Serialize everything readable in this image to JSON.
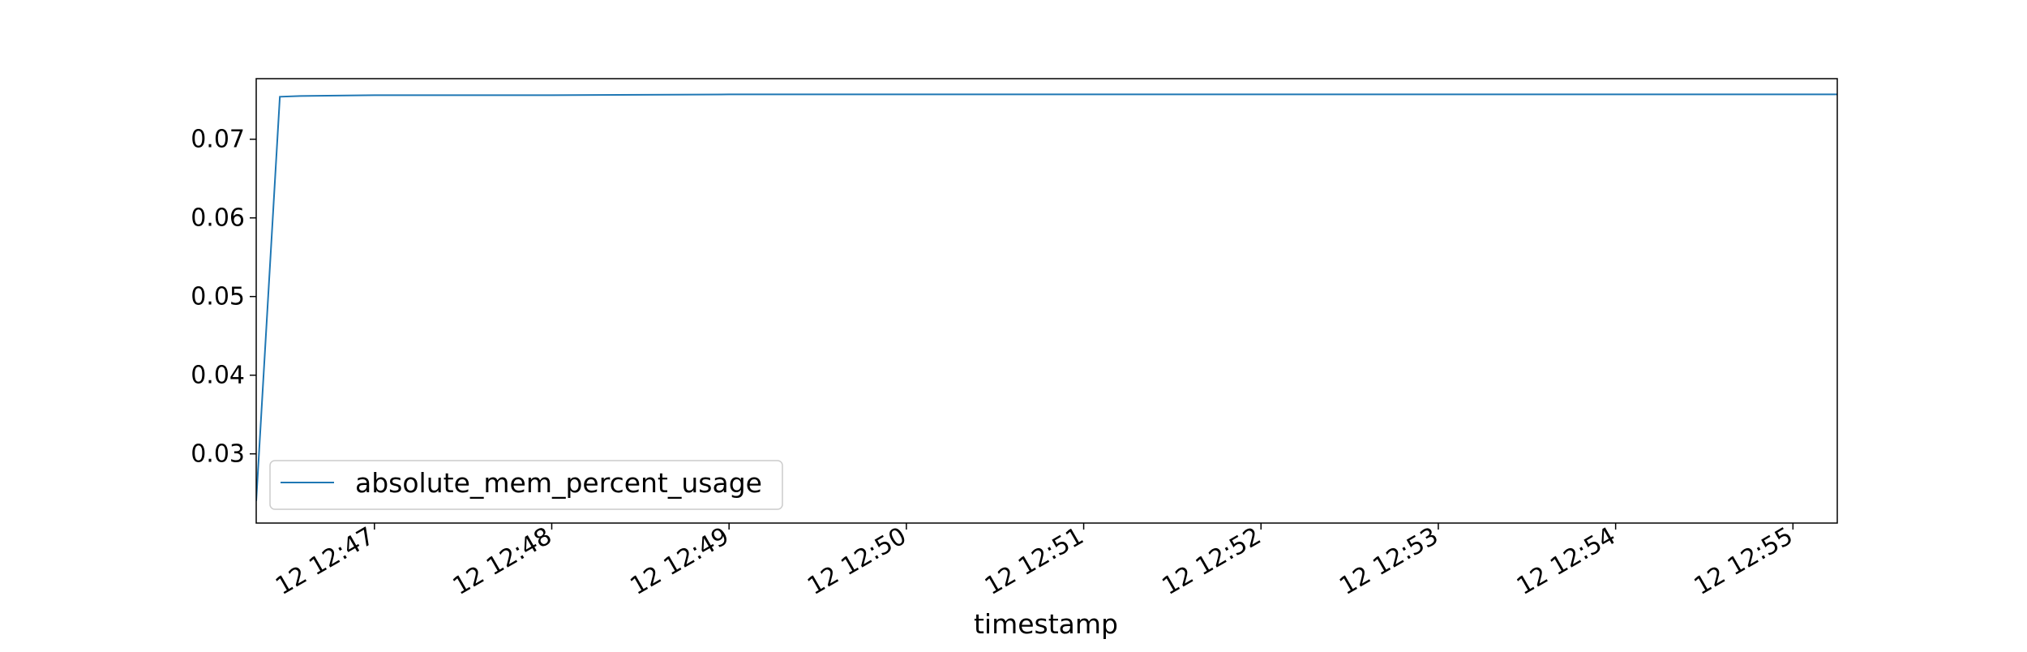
{
  "chart_data": {
    "type": "line",
    "title": "",
    "xlabel": "timestamp",
    "ylabel": "",
    "x_tick_labels": [
      "12 12:47",
      "12 12:48",
      "12 12:49",
      "12 12:50",
      "12 12:51",
      "12 12:52",
      "12 12:53",
      "12 12:54",
      "12 12:55"
    ],
    "y_tick_labels": [
      "0.03",
      "0.04",
      "0.05",
      "0.06",
      "0.07"
    ],
    "y_ticks": [
      0.03,
      0.04,
      0.05,
      0.06,
      0.07
    ],
    "xlim": [
      "12:46:20",
      "12:55:15"
    ],
    "ylim": [
      0.0212,
      0.0777
    ],
    "grid": false,
    "legend_position": "lower-left",
    "series": [
      {
        "name": "absolute_mem_percent_usage",
        "color": "#1f77b4",
        "x": [
          "12:46:20",
          "12:46:28",
          "12:46:35",
          "12:47:00",
          "12:48:00",
          "12:49:00",
          "12:50:00",
          "12:51:00",
          "12:52:00",
          "12:53:00",
          "12:54:00",
          "12:55:00",
          "12:55:15"
        ],
        "y": [
          0.024,
          0.0754,
          0.0755,
          0.0756,
          0.0756,
          0.0757,
          0.0757,
          0.0757,
          0.0757,
          0.0757,
          0.0757,
          0.0757,
          0.0757
        ]
      }
    ]
  }
}
